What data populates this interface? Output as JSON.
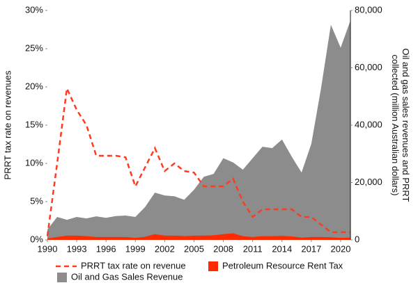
{
  "chart_data": {
    "type": "area-line",
    "y_label": "PRRT tax rate on revenues",
    "y2_label": "Oil and gas sales revenues and PRRT collected (million Australian dollars)",
    "x": [
      1990,
      1991,
      1992,
      1993,
      1994,
      1995,
      1996,
      1997,
      1998,
      1999,
      2000,
      2001,
      2002,
      2003,
      2004,
      2005,
      2006,
      2007,
      2008,
      2009,
      2010,
      2011,
      2012,
      2013,
      2014,
      2015,
      2016,
      2017,
      2018,
      2019,
      2020,
      2021
    ],
    "xlim": [
      1990,
      2021
    ],
    "xticks": [
      1990,
      1993,
      1996,
      1999,
      2002,
      2005,
      2008,
      2011,
      2014,
      2017,
      2020
    ],
    "ylim": [
      0,
      30
    ],
    "yticks": [
      {
        "value": 0,
        "label": "0%"
      },
      {
        "value": 5,
        "label": "5%"
      },
      {
        "value": 10,
        "label": "10%"
      },
      {
        "value": 15,
        "label": "15%"
      },
      {
        "value": 20,
        "label": "20%"
      },
      {
        "value": 25,
        "label": "25%"
      },
      {
        "value": 30,
        "label": "30%"
      }
    ],
    "y2lim": [
      0,
      80000
    ],
    "y2ticks": [
      0,
      {
        "value": 20000,
        "label": "20,000"
      },
      {
        "value": 40000,
        "label": "40,000"
      },
      {
        "value": 60000,
        "label": "60,000"
      },
      {
        "value": 80000,
        "label": "80,000"
      }
    ],
    "series": [
      {
        "name": "PRRT tax rate on revenue",
        "color": "#ff3b1f",
        "style": "dashed-line",
        "axis": "y",
        "values": [
          0.5,
          10,
          19.8,
          17,
          15,
          11,
          11,
          11,
          10.8,
          7,
          9.5,
          12,
          9,
          10,
          9,
          8.8,
          7,
          7,
          7,
          8,
          5,
          3,
          4,
          4,
          4,
          4,
          3,
          3,
          2,
          1,
          1,
          1
        ]
      },
      {
        "name": "Petroleum Resource Rent Tax",
        "color": "#ff2a00",
        "style": "area",
        "axis": "y2",
        "values": [
          500,
          1000,
          1500,
          1500,
          1300,
          1000,
          1000,
          1000,
          1000,
          700,
          1100,
          2000,
          1500,
          1500,
          1300,
          1500,
          1500,
          1600,
          2000,
          2300,
          1300,
          1000,
          1300,
          1300,
          1400,
          1200,
          800,
          1000,
          1000,
          900,
          700,
          800
        ]
      },
      {
        "name": "Oil and Gas Sales Revenue",
        "color": "#8c8c8c",
        "style": "area",
        "axis": "y2",
        "values": [
          3600,
          8000,
          7000,
          8000,
          7500,
          8200,
          7700,
          8300,
          8500,
          8000,
          11500,
          16500,
          15500,
          15200,
          14000,
          17500,
          22000,
          23000,
          28500,
          27000,
          24500,
          28500,
          32500,
          32000,
          35000,
          29000,
          23500,
          33500,
          53000,
          75000,
          67000,
          76500
        ]
      }
    ]
  }
}
